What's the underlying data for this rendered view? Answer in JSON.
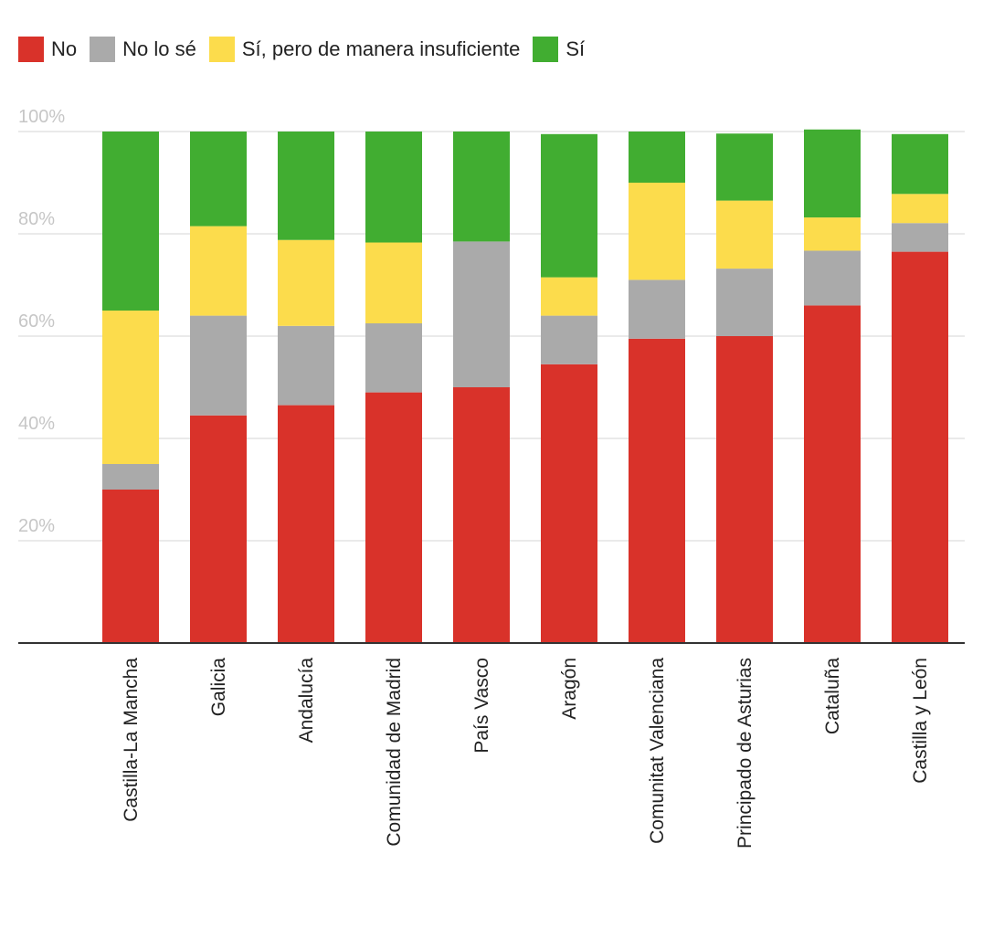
{
  "chart_data": {
    "type": "bar",
    "stacked": true,
    "title": "",
    "xlabel": "",
    "ylabel": "",
    "ylim": [
      0,
      100
    ],
    "yticks": [
      "20%",
      "40%",
      "60%",
      "80%",
      "100%"
    ],
    "grid": true,
    "legend_position": "top-left",
    "categories": [
      "Castilla-La Mancha",
      "Galicia",
      "Andalucía",
      "Comunidad de Madrid",
      "País Vasco",
      "Aragón",
      "Comunitat Valenciana",
      "Principado de Asturias",
      "Cataluña",
      "Castilla y León"
    ],
    "series": [
      {
        "name": "No",
        "color": "#d9322a",
        "values": [
          30,
          44.5,
          46.5,
          49,
          50,
          54.5,
          59.5,
          60,
          66,
          76.5
        ]
      },
      {
        "name": "No lo sé",
        "color": "#aaaaaa",
        "values": [
          5,
          19.5,
          15.5,
          13.5,
          28.5,
          9.5,
          11.5,
          13.2,
          10.7,
          5.6
        ]
      },
      {
        "name": "Sí, pero de manera insuficiente",
        "color": "#fcdc4c",
        "values": [
          30,
          17.5,
          16.8,
          15.8,
          0,
          7.5,
          19,
          13.3,
          6.5,
          5.7
        ]
      },
      {
        "name": "Sí",
        "color": "#41ad31",
        "values": [
          35,
          18.5,
          21.2,
          21.7,
          21.5,
          28,
          10,
          13.1,
          17.2,
          11.7
        ]
      }
    ]
  }
}
